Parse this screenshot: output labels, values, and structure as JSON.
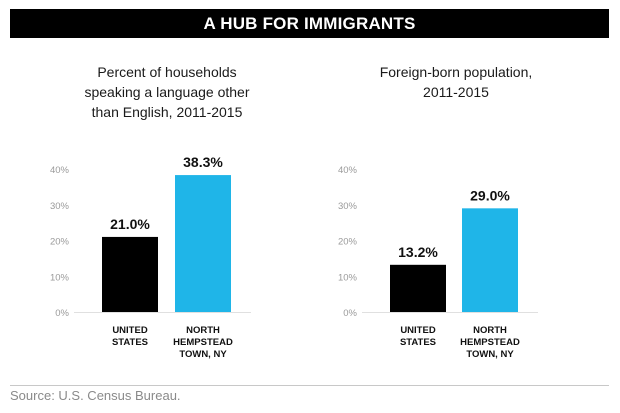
{
  "header": {
    "title": "A HUB FOR IMMIGRANTS"
  },
  "footer": {
    "source": "Source: U.S. Census Bureau."
  },
  "colors": {
    "us": "#000000",
    "nh": "#1fb5e8"
  },
  "chart_data": [
    {
      "type": "bar",
      "title_lines": [
        "Percent of households",
        "speaking a language other",
        "than English, 2011-2015"
      ],
      "categories": [
        [
          "UNITED",
          "STATES"
        ],
        [
          "NORTH",
          "HEMPSTEAD",
          "TOWN, NY"
        ]
      ],
      "values": [
        21.0,
        38.3
      ],
      "value_labels": [
        "21.0%",
        "38.3%"
      ],
      "ylim": [
        0,
        40
      ],
      "yticks": [
        0,
        10,
        20,
        30,
        40
      ],
      "ytick_labels": [
        "0%",
        "10%",
        "20%",
        "30%",
        "40%"
      ],
      "grid": false
    },
    {
      "type": "bar",
      "title_lines": [
        "Foreign-born population,",
        "2011-2015"
      ],
      "categories": [
        [
          "UNITED",
          "STATES"
        ],
        [
          "NORTH",
          "HEMPSTEAD",
          "TOWN, NY"
        ]
      ],
      "values": [
        13.2,
        29.0
      ],
      "value_labels": [
        "13.2%",
        "29.0%"
      ],
      "ylim": [
        0,
        40
      ],
      "yticks": [
        0,
        10,
        20,
        30,
        40
      ],
      "ytick_labels": [
        "0%",
        "10%",
        "20%",
        "30%",
        "40%"
      ],
      "grid": false
    }
  ]
}
